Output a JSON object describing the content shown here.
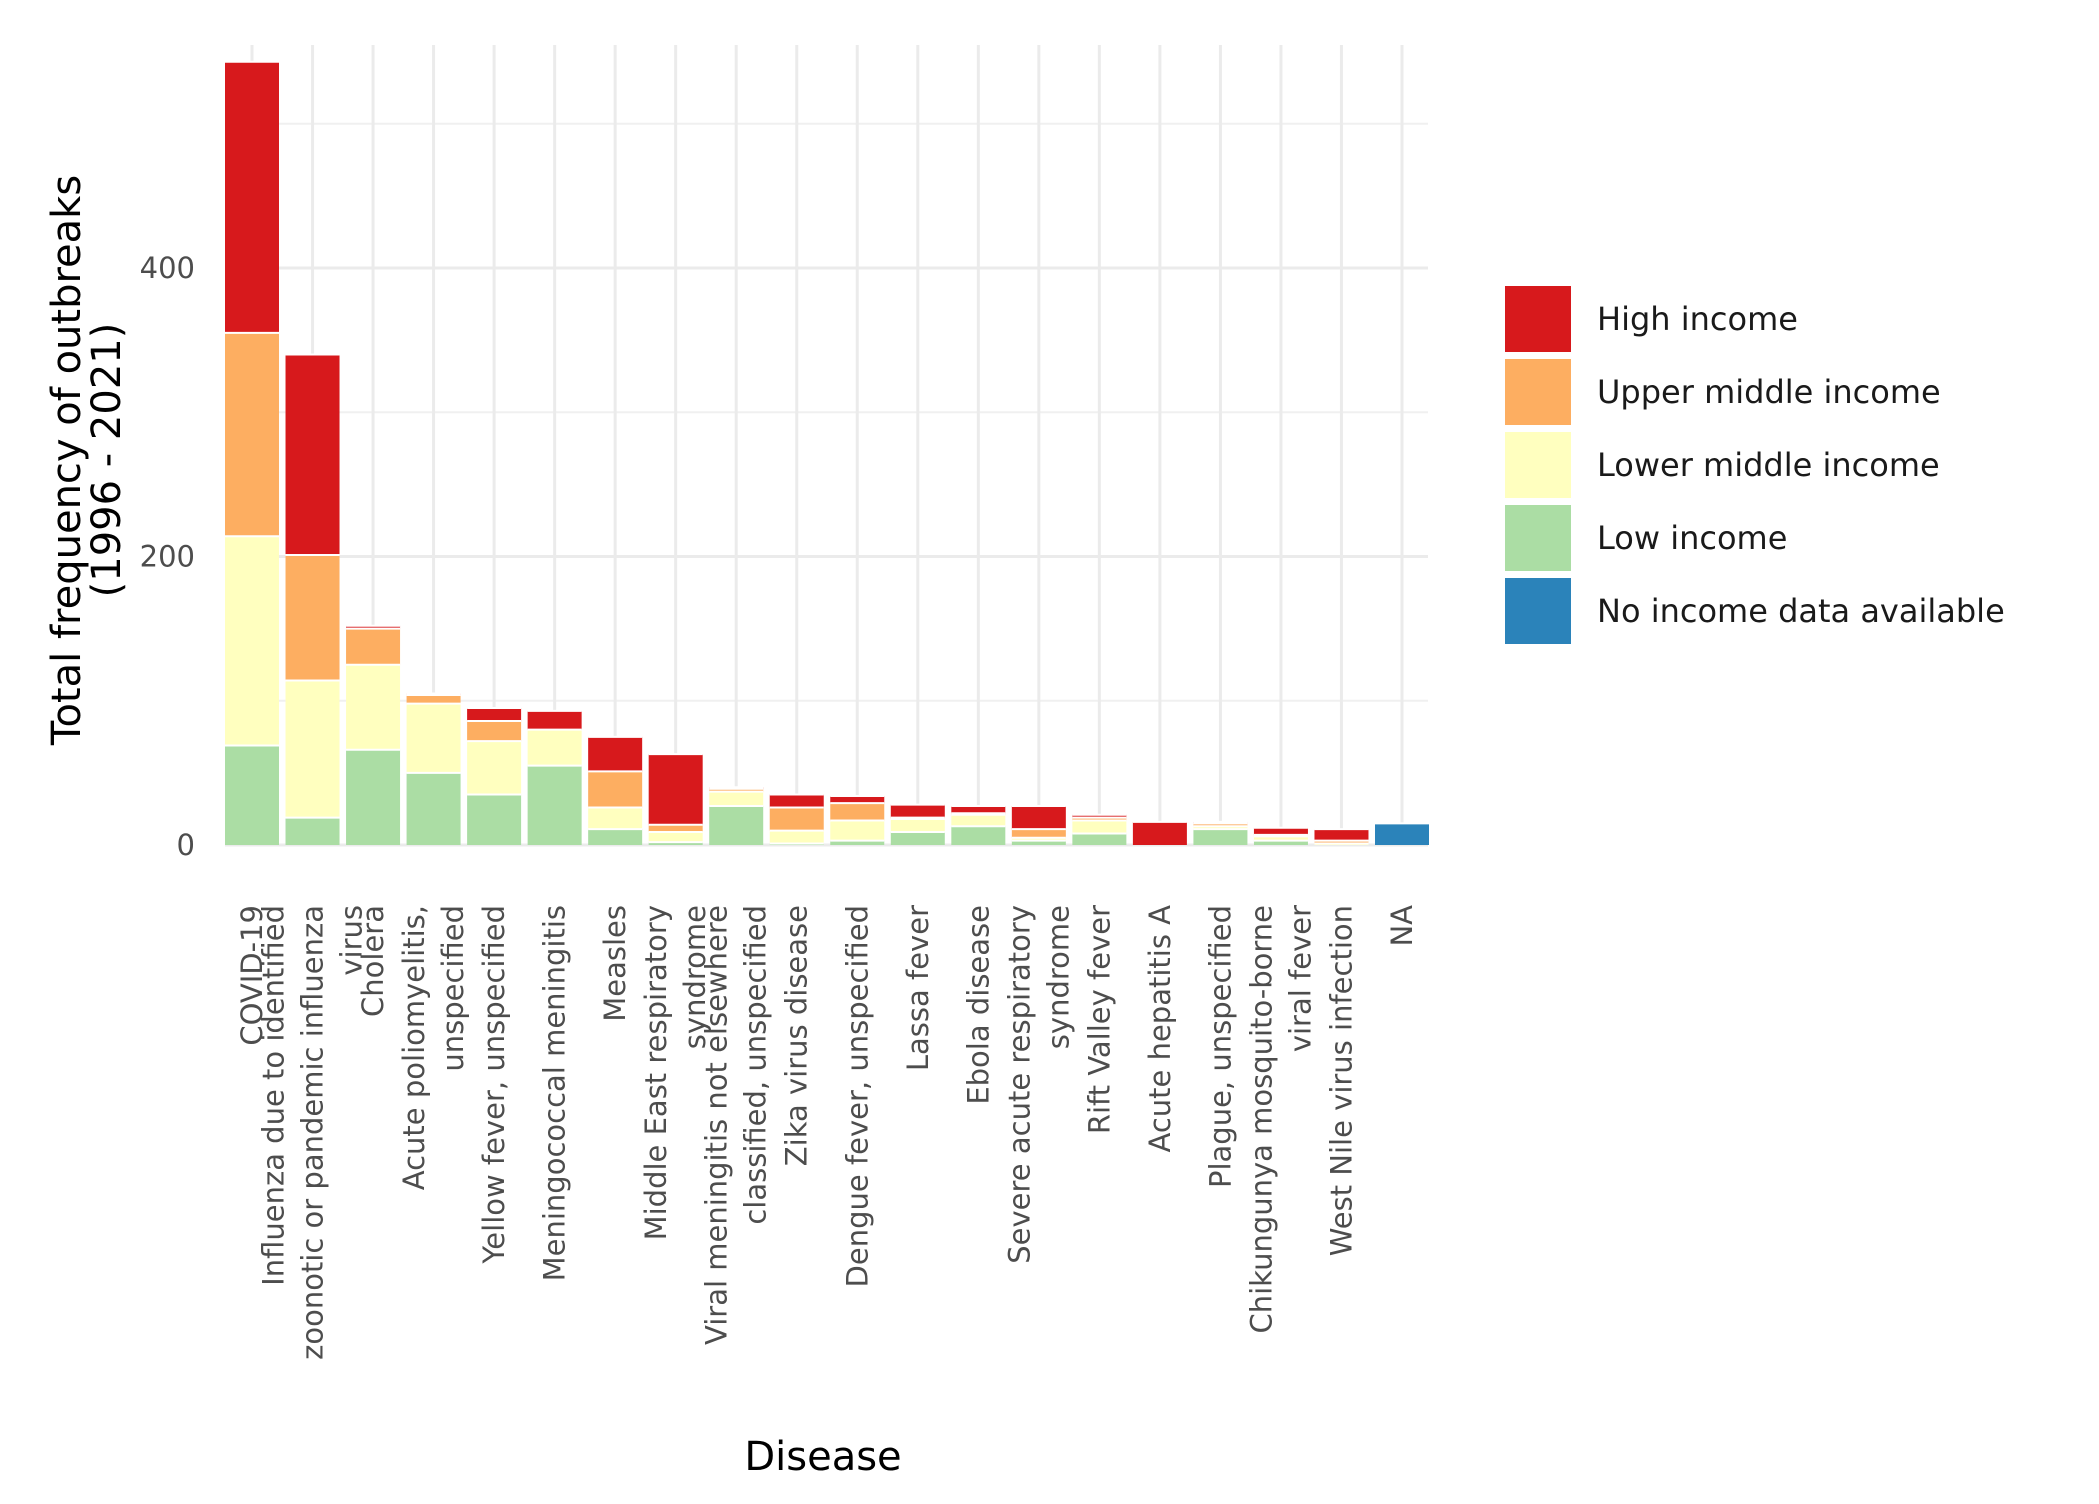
{
  "chart_data": {
    "type": "bar",
    "stacked": true,
    "title": "",
    "xlabel": "Disease",
    "ylabel_lines": [
      "Total frequency of outbreaks",
      "(1996 - 2021)"
    ],
    "ylim": [
      0,
      545
    ],
    "yticks": [
      0,
      200,
      400
    ],
    "grid": true,
    "legend_position": "right",
    "categories": [
      {
        "lines": [
          "COVID-19"
        ]
      },
      {
        "lines": [
          "Influenza due to identified",
          "zoonotic or pandemic influenza",
          "virus"
        ]
      },
      {
        "lines": [
          "Cholera"
        ]
      },
      {
        "lines": [
          "Acute poliomyelitis,",
          "unspecified"
        ]
      },
      {
        "lines": [
          "Yellow fever, unspecified"
        ]
      },
      {
        "lines": [
          "Meningococcal meningitis"
        ]
      },
      {
        "lines": [
          "Measles"
        ]
      },
      {
        "lines": [
          "Middle East respiratory",
          "syndrome"
        ]
      },
      {
        "lines": [
          "Viral meningitis not elsewhere",
          "classified, unspecified"
        ]
      },
      {
        "lines": [
          "Zika virus disease"
        ]
      },
      {
        "lines": [
          "Dengue fever, unspecified"
        ]
      },
      {
        "lines": [
          "Lassa fever"
        ]
      },
      {
        "lines": [
          "Ebola disease"
        ]
      },
      {
        "lines": [
          "Severe acute respiratory",
          "syndrome"
        ]
      },
      {
        "lines": [
          "Rift Valley fever"
        ]
      },
      {
        "lines": [
          "Acute hepatitis A"
        ]
      },
      {
        "lines": [
          "Plague, unspecified"
        ]
      },
      {
        "lines": [
          "Chikungunya mosquito-borne",
          "viral fever"
        ]
      },
      {
        "lines": [
          "West Nile virus infection"
        ]
      },
      {
        "lines": [
          "NA"
        ]
      }
    ],
    "series": [
      {
        "name": "No income data available",
        "color": "#2b83ba",
        "values": [
          0,
          0,
          0,
          0,
          0,
          0,
          0,
          0,
          0,
          0,
          0,
          0,
          0,
          0,
          0,
          0,
          0,
          0,
          0,
          15
        ]
      },
      {
        "name": "Low income",
        "color": "#abdda4",
        "values": [
          69,
          19,
          66,
          50,
          35,
          55,
          11,
          2,
          27,
          1,
          3,
          9,
          13,
          3,
          8,
          0,
          11,
          3,
          0,
          0
        ]
      },
      {
        "name": "Lower middle income",
        "color": "#ffffbf",
        "values": [
          145,
          95,
          59,
          48,
          37,
          25,
          15,
          7,
          10,
          9,
          14,
          9,
          8,
          2,
          9,
          0,
          2,
          3,
          1,
          0
        ]
      },
      {
        "name": "Upper middle income",
        "color": "#fdae61",
        "values": [
          141,
          87,
          25,
          6,
          14,
          0,
          25,
          5,
          2,
          16,
          12,
          1,
          1,
          6,
          2,
          0,
          2,
          1,
          2,
          0
        ]
      },
      {
        "name": "High income",
        "color": "#d7191c",
        "values": [
          188,
          139,
          2,
          1,
          9,
          13,
          24,
          49,
          1,
          9,
          5,
          9,
          5,
          16,
          2,
          16,
          1,
          5,
          8,
          0
        ]
      }
    ],
    "legend_order": [
      "High income",
      "Upper middle income",
      "Lower middle income",
      "Low income",
      "No income data available"
    ]
  }
}
